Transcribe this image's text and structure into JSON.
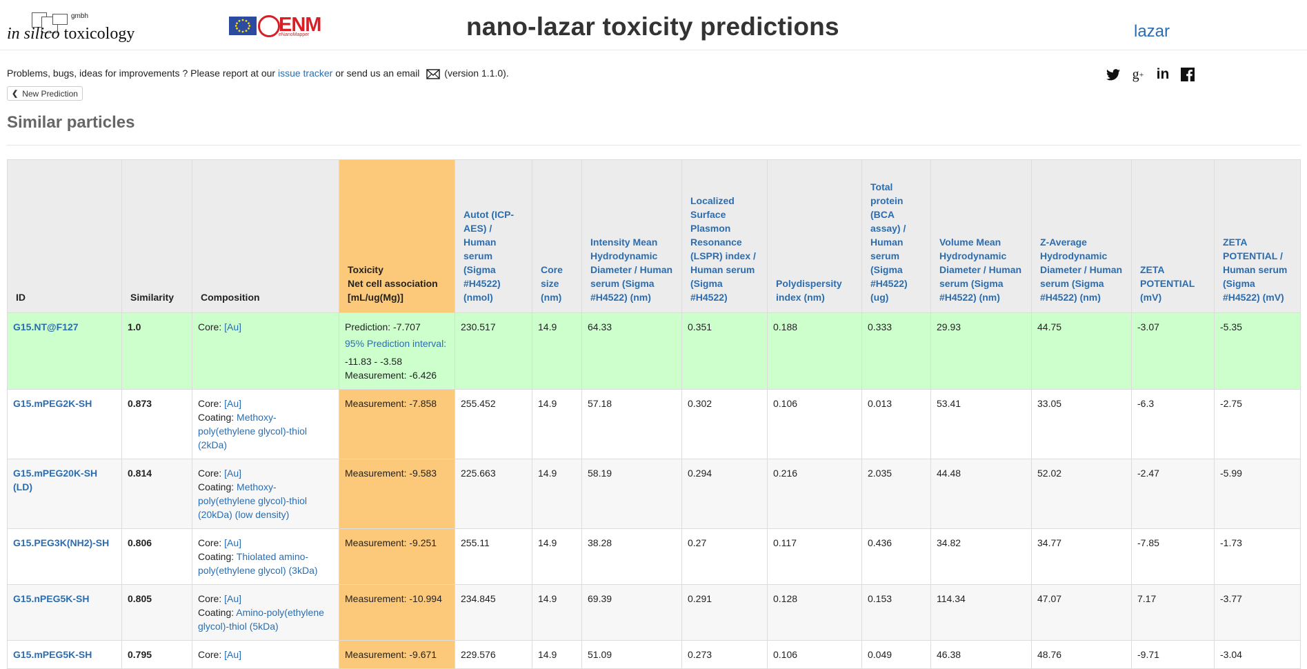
{
  "header": {
    "ist_logo": {
      "gmbh": "gmbh",
      "in_silico": "in silico",
      "word": "toxicology"
    },
    "enm_logo": {
      "text": "ENM",
      "sub": "eNanoMapper"
    },
    "title": "nano-lazar toxicity predictions",
    "lazar_link": "lazar"
  },
  "info": {
    "prefix": "Problems, bugs, ideas for improvements ? Please report at our ",
    "issue_tracker": "issue tracker",
    "middle": " or send us an email ",
    "version": "(version 1.1.0).",
    "mail_icon": "envelope-icon"
  },
  "social": [
    {
      "name": "twitter-icon",
      "glyph": "🐦"
    },
    {
      "name": "google-plus-icon",
      "glyph": "g+"
    },
    {
      "name": "linkedin-icon",
      "glyph": "in"
    },
    {
      "name": "facebook-icon",
      "glyph": "f"
    }
  ],
  "new_prediction_label": "New Prediction",
  "section_title": "Similar particles",
  "table": {
    "headers": [
      "ID",
      "Similarity",
      "Composition",
      "Toxicity",
      "Net cell association [mL/ug(Mg)]",
      "Autot (ICP-AES) / Human serum (Sigma #H4522) (nmol)",
      "Core size (nm)",
      "Intensity Mean Hydrodynamic Diameter / Human serum (Sigma #H4522) (nm)",
      "Localized Surface Plasmon Resonance (LSPR) index / Human serum (Sigma #H4522)",
      "Polydispersity index (nm)",
      "Total protein (BCA assay) / Human serum (Sigma #H4522) (ug)",
      "Volume Mean Hydrodynamic Diameter / Human serum (Sigma #H4522) (nm)",
      "Z-Average Hydrodynamic Diameter / Human serum (Sigma #H4522) (nm)",
      "ZETA POTENTIAL (mV)",
      "ZETA POTENTIAL / Human serum (Sigma #H4522) (mV)"
    ],
    "rows": [
      {
        "id": "G15.NT@F127",
        "similarity": "1.0",
        "core_label": "Core:",
        "core": "[Au]",
        "coating_label": "",
        "coating": "",
        "prediction": "Prediction: -7.707",
        "pi_label": "95% Prediction interval:",
        "pi_range": "-11.83 - -3.58",
        "measurement": "Measurement: -6.426",
        "values": [
          "230.517",
          "14.9",
          "64.33",
          "0.351",
          "0.188",
          "0.333",
          "29.93",
          "44.75",
          "-3.07",
          "-5.35"
        ]
      },
      {
        "id": "G15.mPEG2K-SH",
        "similarity": "0.873",
        "core_label": "Core:",
        "core": "[Au]",
        "coating_label": "Coating:",
        "coating": "Methoxy-poly(ethylene glycol)-thiol (2kDa)",
        "measurement": "Measurement: -7.858",
        "values": [
          "255.452",
          "14.9",
          "57.18",
          "0.302",
          "0.106",
          "0.013",
          "53.41",
          "33.05",
          "-6.3",
          "-2.75"
        ]
      },
      {
        "id": "G15.mPEG20K-SH (LD)",
        "similarity": "0.814",
        "core_label": "Core:",
        "core": "[Au]",
        "coating_label": "Coating:",
        "coating": "Methoxy-poly(ethylene glycol)-thiol (20kDa) (low density)",
        "measurement": "Measurement: -9.583",
        "values": [
          "225.663",
          "14.9",
          "58.19",
          "0.294",
          "0.216",
          "2.035",
          "44.48",
          "52.02",
          "-2.47",
          "-5.99"
        ]
      },
      {
        "id": "G15.PEG3K(NH2)-SH",
        "similarity": "0.806",
        "core_label": "Core:",
        "core": "[Au]",
        "coating_label": "Coating:",
        "coating": "Thiolated amino-poly(ethylene glycol) (3kDa)",
        "measurement": "Measurement: -9.251",
        "values": [
          "255.11",
          "14.9",
          "38.28",
          "0.27",
          "0.117",
          "0.436",
          "34.82",
          "34.77",
          "-7.85",
          "-1.73"
        ]
      },
      {
        "id": "G15.nPEG5K-SH",
        "similarity": "0.805",
        "core_label": "Core:",
        "core": "[Au]",
        "coating_label": "Coating:",
        "coating": "Amino-poly(ethylene glycol)-thiol (5kDa)",
        "measurement": "Measurement: -10.994",
        "values": [
          "234.845",
          "14.9",
          "69.39",
          "0.291",
          "0.128",
          "0.153",
          "114.34",
          "47.07",
          "7.17",
          "-3.77"
        ]
      },
      {
        "id": "G15.mPEG5K-SH",
        "similarity": "0.795",
        "core_label": "Core:",
        "core": "[Au]",
        "coating_label": "",
        "coating": "",
        "measurement": "Measurement: -9.671",
        "values": [
          "229.576",
          "14.9",
          "51.09",
          "0.273",
          "0.106",
          "0.049",
          "46.38",
          "48.76",
          "-9.71",
          "-3.04"
        ]
      }
    ]
  }
}
